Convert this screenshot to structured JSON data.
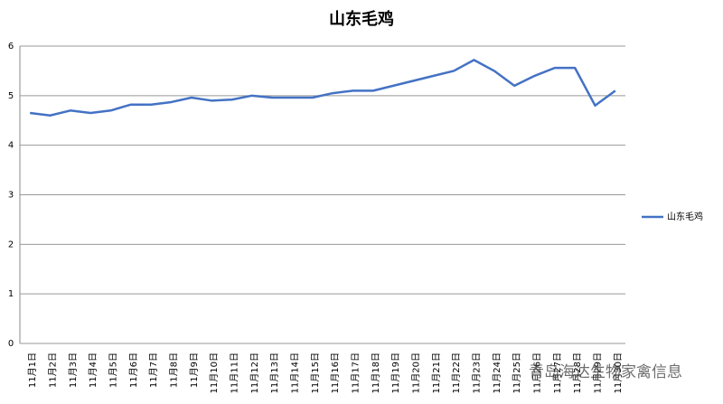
{
  "chart_data": {
    "type": "line",
    "title": "山东毛鸡",
    "categories": [
      "11月1日",
      "11月2日",
      "11月3日",
      "11月4日",
      "11月5日",
      "11月6日",
      "11月7日",
      "11月8日",
      "11月9日",
      "11月10日",
      "11月11日",
      "11月12日",
      "11月13日",
      "11月14日",
      "11月15日",
      "11月16日",
      "11月17日",
      "11月18日",
      "11月19日",
      "11月20日",
      "11月21日",
      "11月22日",
      "11月23日",
      "11月24日",
      "11月25日",
      "11月26日",
      "11月27日",
      "11月28日",
      "11月29日",
      "11月30日"
    ],
    "series": [
      {
        "name": "山东毛鸡",
        "color": "#4472c4",
        "values": [
          4.65,
          4.6,
          4.7,
          4.65,
          4.7,
          4.82,
          4.82,
          4.87,
          4.96,
          4.9,
          4.92,
          5.0,
          4.96,
          4.96,
          4.96,
          5.05,
          5.1,
          5.1,
          5.2,
          5.3,
          5.4,
          5.5,
          5.72,
          5.5,
          5.2,
          5.4,
          5.56,
          5.56,
          4.8,
          5.1
        ]
      }
    ],
    "ylim": [
      0,
      6
    ],
    "yticks": [
      0,
      1,
      2,
      3,
      4,
      5,
      6
    ],
    "grid": true,
    "legend": "right",
    "watermark": "青岛海达生物家禽信息"
  }
}
